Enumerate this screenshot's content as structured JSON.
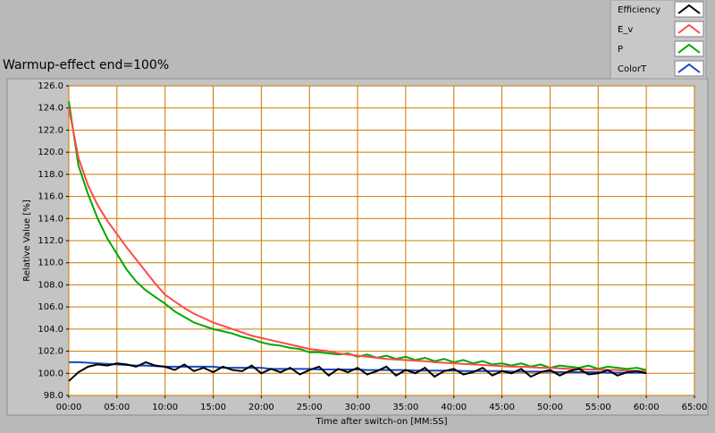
{
  "chart_data": {
    "type": "line",
    "title": "Warmup-effect end=100%",
    "x_label": "Time after switch-on [MM:SS]",
    "y_label": "Relative Value [%]",
    "xlim": [
      0,
      65
    ],
    "ylim": [
      98,
      126
    ],
    "grid": true,
    "grid_color": "#c87800",
    "legend": "top-right",
    "xticks": [
      {
        "value": 0,
        "label": "00:00"
      },
      {
        "value": 5,
        "label": "05:00"
      },
      {
        "value": 10,
        "label": "10:00"
      },
      {
        "value": 15,
        "label": "15:00"
      },
      {
        "value": 20,
        "label": "20:00"
      },
      {
        "value": 25,
        "label": "25:00"
      },
      {
        "value": 30,
        "label": "30:00"
      },
      {
        "value": 35,
        "label": "35:00"
      },
      {
        "value": 40,
        "label": "40:00"
      },
      {
        "value": 45,
        "label": "45:00"
      },
      {
        "value": 50,
        "label": "50:00"
      },
      {
        "value": 55,
        "label": "55:00"
      },
      {
        "value": 60,
        "label": "60:00"
      },
      {
        "value": 65,
        "label": "65:00"
      }
    ],
    "yticks": [
      {
        "value": 98,
        "label": "98.0"
      },
      {
        "value": 100,
        "label": "100.0"
      },
      {
        "value": 102,
        "label": "102.0"
      },
      {
        "value": 104,
        "label": "104.0"
      },
      {
        "value": 106,
        "label": "106.0"
      },
      {
        "value": 108,
        "label": "108.0"
      },
      {
        "value": 110,
        "label": "110.0"
      },
      {
        "value": 112,
        "label": "112.0"
      },
      {
        "value": 114,
        "label": "114.0"
      },
      {
        "value": 116,
        "label": "116.0"
      },
      {
        "value": 118,
        "label": "118.0"
      },
      {
        "value": 120,
        "label": "120.0"
      },
      {
        "value": 122,
        "label": "122.0"
      },
      {
        "value": 124,
        "label": "124.0"
      },
      {
        "value": 126,
        "label": "126.0"
      }
    ],
    "x": [
      0,
      1,
      2,
      3,
      4,
      5,
      6,
      7,
      8,
      9,
      10,
      11,
      12,
      13,
      14,
      15,
      16,
      17,
      18,
      19,
      20,
      21,
      22,
      23,
      24,
      25,
      26,
      27,
      28,
      29,
      30,
      31,
      32,
      33,
      34,
      35,
      36,
      37,
      38,
      39,
      40,
      41,
      42,
      43,
      44,
      45,
      46,
      47,
      48,
      49,
      50,
      51,
      52,
      53,
      54,
      55,
      56,
      57,
      58,
      59,
      60
    ],
    "series": [
      {
        "name": "Efficiency",
        "color": "#000000",
        "values": [
          99.3,
          100.1,
          100.6,
          100.8,
          100.7,
          100.9,
          100.8,
          100.6,
          101.0,
          100.7,
          100.6,
          100.3,
          100.8,
          100.2,
          100.5,
          100.1,
          100.6,
          100.3,
          100.2,
          100.7,
          100.0,
          100.4,
          100.1,
          100.5,
          99.9,
          100.3,
          100.6,
          99.8,
          100.4,
          100.1,
          100.5,
          99.9,
          100.2,
          100.6,
          99.8,
          100.3,
          100.0,
          100.5,
          99.7,
          100.2,
          100.4,
          99.9,
          100.1,
          100.5,
          99.8,
          100.2,
          100.0,
          100.4,
          99.7,
          100.1,
          100.3,
          99.8,
          100.2,
          100.4,
          99.9,
          100.0,
          100.3,
          99.8,
          100.1,
          100.2,
          100.0
        ]
      },
      {
        "name": "E_v",
        "color": "#ff4a4a",
        "values": [
          124.0,
          119.5,
          117.0,
          115.2,
          113.8,
          112.6,
          111.4,
          110.3,
          109.2,
          108.1,
          107.1,
          106.5,
          105.9,
          105.4,
          105.0,
          104.6,
          104.3,
          104.0,
          103.7,
          103.4,
          103.2,
          103.0,
          102.8,
          102.6,
          102.4,
          102.2,
          102.1,
          102.0,
          101.8,
          101.7,
          101.6,
          101.5,
          101.4,
          101.3,
          101.25,
          101.2,
          101.15,
          101.1,
          101.0,
          100.95,
          100.9,
          100.85,
          100.8,
          100.75,
          100.7,
          100.65,
          100.6,
          100.6,
          100.55,
          100.5,
          100.5,
          100.45,
          100.4,
          100.4,
          100.35,
          100.35,
          100.3,
          100.3,
          100.25,
          100.2,
          100.2
        ]
      },
      {
        "name": "P",
        "color": "#00a800",
        "values": [
          124.6,
          118.8,
          116.2,
          114.0,
          112.2,
          110.8,
          109.4,
          108.3,
          107.5,
          106.9,
          106.3,
          105.6,
          105.1,
          104.6,
          104.3,
          104.0,
          103.8,
          103.6,
          103.3,
          103.1,
          102.8,
          102.6,
          102.5,
          102.3,
          102.2,
          101.9,
          101.9,
          101.8,
          101.7,
          101.8,
          101.5,
          101.7,
          101.4,
          101.6,
          101.3,
          101.5,
          101.2,
          101.4,
          101.1,
          101.3,
          101.0,
          101.2,
          100.9,
          101.1,
          100.8,
          100.9,
          100.7,
          100.9,
          100.6,
          100.8,
          100.5,
          100.7,
          100.6,
          100.5,
          100.7,
          100.4,
          100.6,
          100.5,
          100.4,
          100.5,
          100.3
        ]
      },
      {
        "name": "ColorT",
        "color": "#1848c0",
        "values": [
          101.0,
          101.0,
          100.95,
          100.9,
          100.85,
          100.8,
          100.75,
          100.7,
          100.7,
          100.65,
          100.6,
          100.6,
          100.6,
          100.6,
          100.6,
          100.6,
          100.5,
          100.5,
          100.5,
          100.5,
          100.5,
          100.4,
          100.4,
          100.4,
          100.4,
          100.4,
          100.35,
          100.35,
          100.35,
          100.35,
          100.35,
          100.3,
          100.3,
          100.3,
          100.3,
          100.3,
          100.25,
          100.25,
          100.25,
          100.25,
          100.25,
          100.2,
          100.2,
          100.2,
          100.2,
          100.2,
          100.15,
          100.15,
          100.15,
          100.15,
          100.15,
          100.1,
          100.1,
          100.1,
          100.1,
          100.1,
          100.05,
          100.05,
          100.05,
          100.05,
          100.05
        ]
      }
    ]
  }
}
